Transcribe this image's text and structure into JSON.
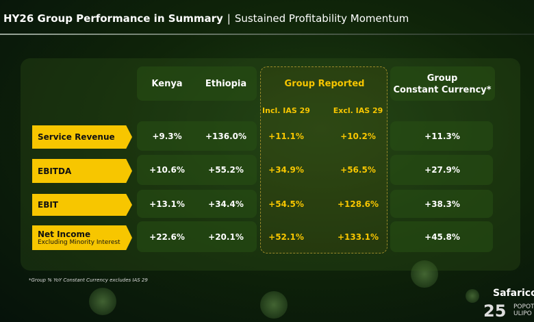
{
  "header": {
    "title_bold": "HY26 Group Performance in Summary",
    "separator": "|",
    "title_light": "Sustained Profitability Momentum"
  },
  "columns": {
    "kenya": "Kenya",
    "ethiopia": "Ethiopia",
    "group_reported": "Group Reported",
    "incl": "Incl. IAS 29",
    "excl": "Excl. IAS 29",
    "gcc_line1": "Group",
    "gcc_line2": "Constant Currency*"
  },
  "rows": [
    {
      "label": "Service Revenue",
      "sublabel": "",
      "kenya": "+9.3%",
      "ethiopia": "+136.0%",
      "incl": "+11.1%",
      "excl": "+10.2%",
      "gcc": "+11.3%"
    },
    {
      "label": "EBITDA",
      "sublabel": "",
      "kenya": "+10.6%",
      "ethiopia": "+55.2%",
      "incl": "+34.9%",
      "excl": "+56.5%",
      "gcc": "+27.9%"
    },
    {
      "label": "EBIT",
      "sublabel": "",
      "kenya": "+13.1%",
      "ethiopia": "+34.4%",
      "incl": "+54.5%",
      "excl": "+128.6%",
      "gcc": "+38.3%"
    },
    {
      "label": "Net Income",
      "sublabel": "Excluding Minority Interest",
      "kenya": "+22.6%",
      "ethiopia": "+20.1%",
      "incl": "+52.1%",
      "excl": "+133.1%",
      "gcc": "+45.8%"
    }
  ],
  "footnote": "*Group % YoY Constant Currency excludes IAS 29",
  "logo": {
    "brand": "Safaricom",
    "number": "25",
    "tag1": "POPOTE",
    "tag2": "ULIPO"
  },
  "colors": {
    "accent": "#f7c600",
    "background": "#0f2409"
  }
}
